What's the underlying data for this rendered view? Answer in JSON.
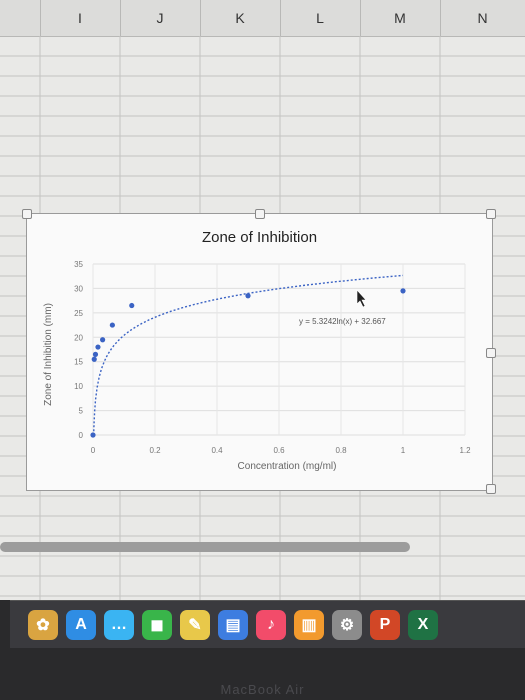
{
  "spreadsheet": {
    "columns": [
      "I",
      "J",
      "K",
      "L",
      "M",
      "N"
    ]
  },
  "chart_data": {
    "type": "scatter",
    "title": "Zone of Inhibition",
    "xlabel": "Concentration (mg/ml)",
    "ylabel": "Zone of Inhibition (mm)",
    "xlim": [
      0,
      1.2
    ],
    "ylim": [
      0,
      35
    ],
    "xticks": [
      "0",
      "0.2",
      "0.4",
      "0.6",
      "0.8",
      "1",
      "1.2"
    ],
    "yticks": [
      "0",
      "5",
      "10",
      "15",
      "20",
      "25",
      "30",
      "35"
    ],
    "points": [
      {
        "x": 0,
        "y": 0
      },
      {
        "x": 0.004,
        "y": 15.5
      },
      {
        "x": 0.008,
        "y": 16.5
      },
      {
        "x": 0.016,
        "y": 18
      },
      {
        "x": 0.031,
        "y": 19.5
      },
      {
        "x": 0.0625,
        "y": 22.5
      },
      {
        "x": 0.125,
        "y": 26.5
      },
      {
        "x": 0.5,
        "y": 28.5
      },
      {
        "x": 1,
        "y": 29.5
      }
    ],
    "trendline": {
      "type": "logarithmic",
      "a": 5.3242,
      "b": 32.667,
      "label": "y = 5.3242ln(x) + 32.667"
    },
    "grid": true,
    "colors": {
      "points": "#3b63c4",
      "trendline": "#3b63c4"
    }
  },
  "dock": {
    "items": [
      {
        "icon": "photos-icon",
        "glyph": "✿",
        "color": "#d9a441"
      },
      {
        "icon": "app-store-icon",
        "glyph": "A",
        "color": "#2f8de4"
      },
      {
        "icon": "messages-icon",
        "glyph": "…",
        "color": "#3ab4f2"
      },
      {
        "icon": "facetime-icon",
        "glyph": "◼",
        "color": "#39b54a"
      },
      {
        "icon": "notes-icon",
        "glyph": "✎",
        "color": "#e8c84a"
      },
      {
        "icon": "keynote-icon",
        "glyph": "▤",
        "color": "#3d7de0"
      },
      {
        "icon": "music-icon",
        "glyph": "♪",
        "color": "#f24c6a"
      },
      {
        "icon": "books-icon",
        "glyph": "▥",
        "color": "#f29a2e"
      },
      {
        "icon": "system-preferences-icon",
        "glyph": "⚙",
        "color": "#8c8c8c"
      },
      {
        "icon": "powerpoint-icon",
        "glyph": "P",
        "color": "#d24726"
      },
      {
        "icon": "excel-icon",
        "glyph": "X",
        "color": "#1f7244"
      }
    ]
  },
  "bezel": {
    "label": "MacBook Air"
  }
}
